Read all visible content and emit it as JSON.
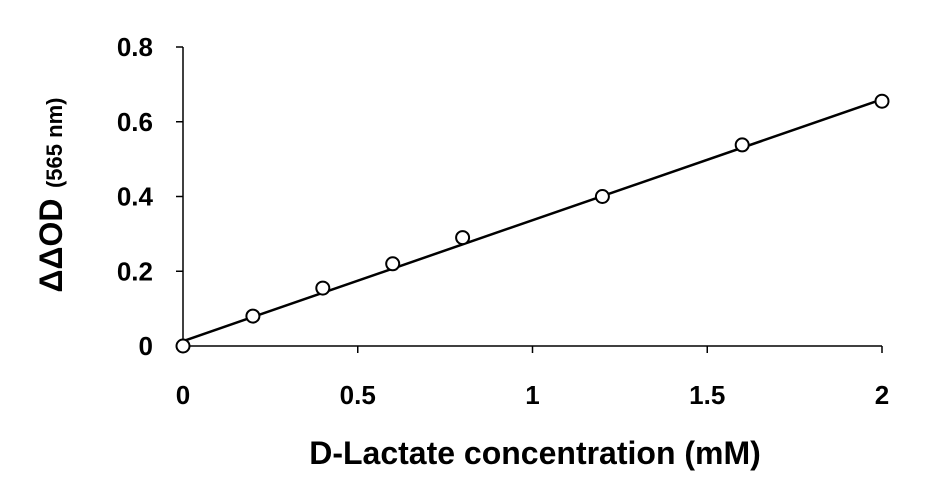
{
  "chart_data": {
    "type": "scatter",
    "xlabel": "D-Lactate concentration (mM)",
    "ylabel_main": "ΔΔOD",
    "ylabel_sub": "(565 nm)",
    "xlim": [
      0,
      2
    ],
    "ylim": [
      0,
      0.8
    ],
    "x_ticks": [
      "0",
      "0.5",
      "1",
      "1.5",
      "2"
    ],
    "y_ticks": [
      "0",
      "0.2",
      "0.4",
      "0.6",
      "0.8"
    ],
    "grid": false,
    "points": [
      {
        "x": 0,
        "y": 0
      },
      {
        "x": 0.2,
        "y": 0.08
      },
      {
        "x": 0.4,
        "y": 0.155
      },
      {
        "x": 0.6,
        "y": 0.22
      },
      {
        "x": 0.8,
        "y": 0.29
      },
      {
        "x": 1.2,
        "y": 0.4
      },
      {
        "x": 1.6,
        "y": 0.538
      },
      {
        "x": 2.0,
        "y": 0.655
      }
    ],
    "trendline": {
      "x0": 0,
      "y0": 0.013,
      "x1": 2,
      "y1": 0.66
    }
  },
  "colors": {
    "axis": "#000000",
    "marker_fill": "#ffffff",
    "marker_stroke": "#000000",
    "line": "#000000"
  }
}
